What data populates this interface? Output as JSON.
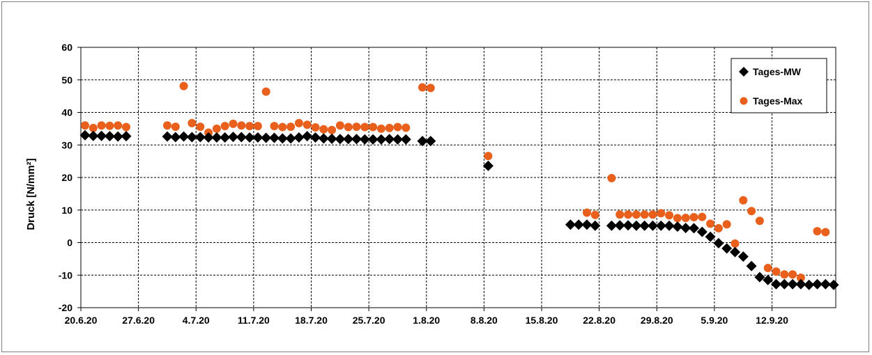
{
  "chart_data": {
    "type": "scatter",
    "title": "",
    "xlabel": "",
    "ylabel": "Druck [N/mm²]",
    "ylim": [
      -20,
      60
    ],
    "yticks": [
      -20,
      -10,
      0,
      10,
      20,
      30,
      40,
      50,
      60
    ],
    "xlim": [
      "2020-06-20",
      "2020-09-19"
    ],
    "xticks": [
      "20.6.20",
      "27.6.20",
      "4.7.20",
      "11.7.20",
      "18.7.20",
      "25.7.20",
      "1.8.20",
      "8.8.20",
      "15.8.20",
      "22.8.20",
      "29.8.20",
      "5.9.20",
      "12.9.20"
    ],
    "grid": true,
    "legend_position": "top-right",
    "colors": {
      "mw": "#000000",
      "max": "#e8601c",
      "grid": "#000000"
    },
    "series": [
      {
        "name": "Tages-MW",
        "marker": "diamond",
        "points": [
          [
            "2020-06-20",
            33
          ],
          [
            "2020-06-21",
            32.8
          ],
          [
            "2020-06-22",
            32.8
          ],
          [
            "2020-06-23",
            32.7
          ],
          [
            "2020-06-24",
            32.6
          ],
          [
            "2020-06-25",
            32.7
          ],
          [
            "2020-06-30",
            32.6
          ],
          [
            "2020-07-01",
            32.4
          ],
          [
            "2020-07-02",
            32.6
          ],
          [
            "2020-07-03",
            32.4
          ],
          [
            "2020-07-04",
            32.4
          ],
          [
            "2020-07-05",
            32.3
          ],
          [
            "2020-07-06",
            32.3
          ],
          [
            "2020-07-07",
            32.3
          ],
          [
            "2020-07-08",
            32.5
          ],
          [
            "2020-07-09",
            32.4
          ],
          [
            "2020-07-10",
            32.3
          ],
          [
            "2020-07-11",
            32.3
          ],
          [
            "2020-07-12",
            32.2
          ],
          [
            "2020-07-13",
            32.2
          ],
          [
            "2020-07-14",
            32
          ],
          [
            "2020-07-15",
            32
          ],
          [
            "2020-07-16",
            32.3
          ],
          [
            "2020-07-17",
            32.7
          ],
          [
            "2020-07-18",
            32.3
          ],
          [
            "2020-07-19",
            32
          ],
          [
            "2020-07-20",
            31.9
          ],
          [
            "2020-07-21",
            31.8
          ],
          [
            "2020-07-22",
            31.8
          ],
          [
            "2020-07-23",
            31.8
          ],
          [
            "2020-07-24",
            31.7
          ],
          [
            "2020-07-25",
            31.7
          ],
          [
            "2020-07-26",
            31.7
          ],
          [
            "2020-07-27",
            31.8
          ],
          [
            "2020-07-28",
            31.7
          ],
          [
            "2020-07-29",
            31.7
          ],
          [
            "2020-07-31",
            31.2
          ],
          [
            "2020-08-01",
            31.2
          ],
          [
            "2020-08-08",
            23.6
          ],
          [
            "2020-08-18",
            5.5
          ],
          [
            "2020-08-19",
            5.5
          ],
          [
            "2020-08-20",
            5.5
          ],
          [
            "2020-08-21",
            5.2
          ],
          [
            "2020-08-23",
            5.2
          ],
          [
            "2020-08-24",
            5.3
          ],
          [
            "2020-08-25",
            5.3
          ],
          [
            "2020-08-26",
            5.2
          ],
          [
            "2020-08-27",
            5.2
          ],
          [
            "2020-08-28",
            5.2
          ],
          [
            "2020-08-29",
            5.2
          ],
          [
            "2020-08-30",
            5.2
          ],
          [
            "2020-08-31",
            4.9
          ],
          [
            "2020-09-01",
            4.5
          ],
          [
            "2020-09-02",
            4.4
          ],
          [
            "2020-09-03",
            3.3
          ],
          [
            "2020-09-04",
            1.8
          ],
          [
            "2020-09-05",
            -0.2
          ],
          [
            "2020-09-06",
            -1.8
          ],
          [
            "2020-09-07",
            -2.9
          ],
          [
            "2020-09-08",
            -4.3
          ],
          [
            "2020-09-09",
            -7.2
          ],
          [
            "2020-09-10",
            -10.6
          ],
          [
            "2020-09-11",
            -11.5
          ],
          [
            "2020-09-12",
            -12.8
          ],
          [
            "2020-09-13",
            -12.8
          ],
          [
            "2020-09-14",
            -12.8
          ],
          [
            "2020-09-15",
            -12.8
          ],
          [
            "2020-09-16",
            -13
          ],
          [
            "2020-09-17",
            -12.8
          ],
          [
            "2020-09-18",
            -12.8
          ],
          [
            "2020-09-19",
            -13
          ]
        ]
      },
      {
        "name": "Tages-Max",
        "marker": "circle",
        "points": [
          [
            "2020-06-20",
            36
          ],
          [
            "2020-06-21",
            35.2
          ],
          [
            "2020-06-22",
            36
          ],
          [
            "2020-06-23",
            35.9
          ],
          [
            "2020-06-24",
            36
          ],
          [
            "2020-06-25",
            35.5
          ],
          [
            "2020-06-30",
            36
          ],
          [
            "2020-07-01",
            35.6
          ],
          [
            "2020-07-02",
            48.1
          ],
          [
            "2020-07-03",
            36.7
          ],
          [
            "2020-07-04",
            35.6
          ],
          [
            "2020-07-05",
            33.8
          ],
          [
            "2020-07-06",
            35
          ],
          [
            "2020-07-07",
            35.8
          ],
          [
            "2020-07-08",
            36.5
          ],
          [
            "2020-07-09",
            36
          ],
          [
            "2020-07-10",
            35.8
          ],
          [
            "2020-07-11",
            35.8
          ],
          [
            "2020-07-12",
            46.4
          ],
          [
            "2020-07-13",
            35.8
          ],
          [
            "2020-07-14",
            35.5
          ],
          [
            "2020-07-15",
            35.6
          ],
          [
            "2020-07-16",
            36.7
          ],
          [
            "2020-07-17",
            36.2
          ],
          [
            "2020-07-18",
            35.4
          ],
          [
            "2020-07-19",
            34.8
          ],
          [
            "2020-07-20",
            34.6
          ],
          [
            "2020-07-21",
            36
          ],
          [
            "2020-07-22",
            35.5
          ],
          [
            "2020-07-23",
            35.6
          ],
          [
            "2020-07-24",
            35.5
          ],
          [
            "2020-07-25",
            35.5
          ],
          [
            "2020-07-26",
            35
          ],
          [
            "2020-07-27",
            35.2
          ],
          [
            "2020-07-28",
            35.5
          ],
          [
            "2020-07-29",
            35.3
          ],
          [
            "2020-07-31",
            47.7
          ],
          [
            "2020-08-01",
            47.5
          ],
          [
            "2020-08-08",
            26.6
          ],
          [
            "2020-08-20",
            9.2
          ],
          [
            "2020-08-21",
            8.5
          ],
          [
            "2020-08-23",
            19.8
          ],
          [
            "2020-08-24",
            8.6
          ],
          [
            "2020-08-25",
            8.6
          ],
          [
            "2020-08-26",
            8.6
          ],
          [
            "2020-08-27",
            8.6
          ],
          [
            "2020-08-28",
            8.6
          ],
          [
            "2020-08-29",
            9
          ],
          [
            "2020-08-30",
            8.4
          ],
          [
            "2020-08-31",
            7.5
          ],
          [
            "2020-09-01",
            7.6
          ],
          [
            "2020-09-02",
            7.8
          ],
          [
            "2020-09-03",
            7.9
          ],
          [
            "2020-09-04",
            5.8
          ],
          [
            "2020-09-05",
            4.4
          ],
          [
            "2020-09-06",
            5.6
          ],
          [
            "2020-09-07",
            -0.3
          ],
          [
            "2020-09-08",
            13
          ],
          [
            "2020-09-09",
            9.7
          ],
          [
            "2020-09-10",
            6.7
          ],
          [
            "2020-09-11",
            -7.8
          ],
          [
            "2020-09-12",
            -8.9
          ],
          [
            "2020-09-13",
            -9.8
          ],
          [
            "2020-09-14",
            -9.8
          ],
          [
            "2020-09-15",
            -10.8
          ],
          [
            "2020-09-17",
            3.5
          ],
          [
            "2020-09-18",
            3.2
          ]
        ]
      }
    ]
  }
}
